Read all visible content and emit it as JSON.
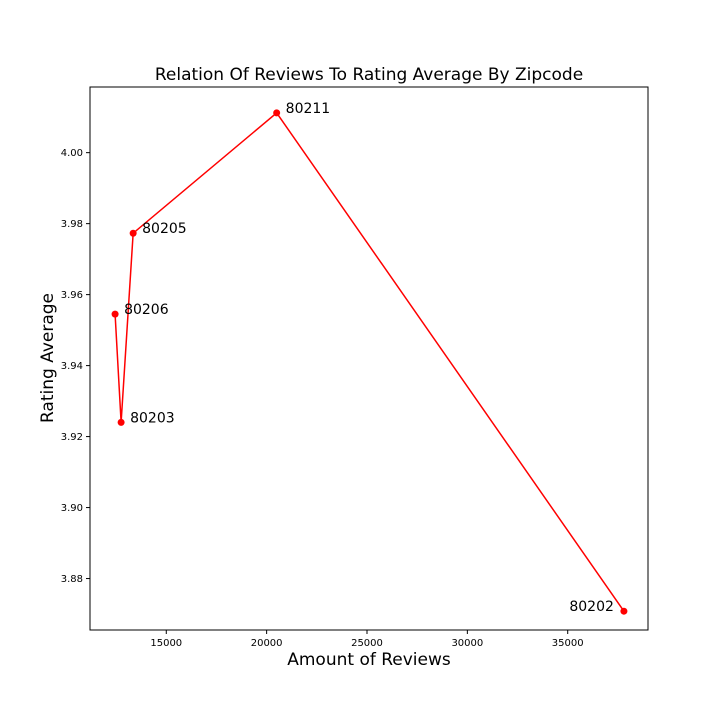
{
  "chart_data": {
    "type": "line",
    "title": "Relation Of Reviews To Rating Average By Zipcode",
    "xlabel": "Amount of Reviews",
    "ylabel": "Rating Average",
    "xlim": [
      11200,
      39000
    ],
    "ylim": [
      3.8655,
      4.0185
    ],
    "xticks": [
      15000,
      20000,
      25000,
      30000,
      35000
    ],
    "xtick_labels": [
      "15000",
      "20000",
      "25000",
      "30000",
      "35000"
    ],
    "yticks": [
      3.88,
      3.9,
      3.92,
      3.94,
      3.96,
      3.98,
      4.0
    ],
    "ytick_labels": [
      "3.88",
      "3.90",
      "3.92",
      "3.94",
      "3.96",
      "3.98",
      "4.00"
    ],
    "grid": false,
    "color": "#ff0000",
    "points": [
      {
        "x": 12450,
        "y": 3.9545,
        "label": "80206"
      },
      {
        "x": 12750,
        "y": 3.924,
        "label": "80203"
      },
      {
        "x": 13350,
        "y": 3.9773,
        "label": "80205"
      },
      {
        "x": 20500,
        "y": 4.0112,
        "label": "80211"
      },
      {
        "x": 37800,
        "y": 3.8708,
        "label": "80202"
      }
    ]
  }
}
